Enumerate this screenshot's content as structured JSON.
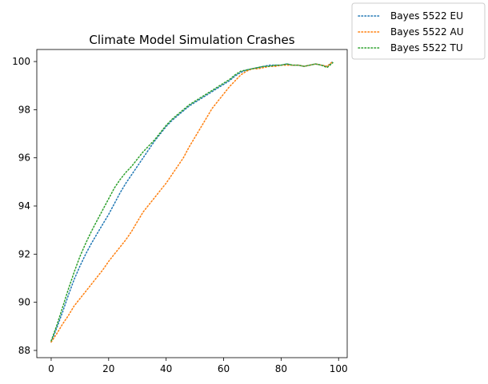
{
  "chart_data": {
    "type": "line",
    "title": "Climate Model Simulation Crashes",
    "xlabel": "",
    "ylabel": "",
    "xlim": [
      -5,
      103
    ],
    "ylim": [
      87.7,
      100.5
    ],
    "xticks": [
      0,
      20,
      40,
      60,
      80,
      100
    ],
    "yticks": [
      88,
      90,
      92,
      94,
      96,
      98,
      100
    ],
    "grid": false,
    "legend_position": "outside-top-right",
    "series": [
      {
        "name": "Bayes 5522 EU",
        "color": "#1f77b4",
        "style": "dotted",
        "x": [
          0,
          2,
          4,
          6,
          8,
          10,
          12,
          14,
          16,
          18,
          20,
          22,
          24,
          26,
          28,
          30,
          32,
          34,
          36,
          38,
          40,
          42,
          44,
          46,
          48,
          50,
          52,
          54,
          56,
          58,
          60,
          62,
          64,
          66,
          68,
          70,
          72,
          74,
          76,
          78,
          80,
          82,
          84,
          86,
          88,
          90,
          92,
          94,
          96,
          98
        ],
        "y": [
          88.35,
          88.95,
          89.6,
          90.3,
          90.95,
          91.5,
          92.0,
          92.45,
          92.85,
          93.25,
          93.65,
          94.1,
          94.55,
          94.95,
          95.3,
          95.65,
          96.0,
          96.35,
          96.7,
          97.0,
          97.3,
          97.55,
          97.75,
          97.95,
          98.15,
          98.3,
          98.45,
          98.6,
          98.75,
          98.9,
          99.05,
          99.2,
          99.4,
          99.55,
          99.65,
          99.7,
          99.75,
          99.8,
          99.85,
          99.85,
          99.85,
          99.9,
          99.85,
          99.85,
          99.8,
          99.85,
          99.9,
          99.85,
          99.8,
          100.0
        ]
      },
      {
        "name": "Bayes 5522 AU",
        "color": "#ff7f0e",
        "style": "dotted",
        "x": [
          0,
          2,
          4,
          6,
          8,
          10,
          12,
          14,
          16,
          18,
          20,
          22,
          24,
          26,
          28,
          30,
          32,
          34,
          36,
          38,
          40,
          42,
          44,
          46,
          48,
          50,
          52,
          54,
          56,
          58,
          60,
          62,
          64,
          66,
          68,
          70,
          72,
          74,
          76,
          78,
          80,
          82,
          84,
          86,
          88,
          90,
          92,
          94,
          96,
          98
        ],
        "y": [
          88.35,
          88.7,
          89.1,
          89.45,
          89.85,
          90.15,
          90.45,
          90.75,
          91.05,
          91.35,
          91.7,
          92.0,
          92.3,
          92.6,
          92.95,
          93.35,
          93.75,
          94.05,
          94.35,
          94.65,
          94.95,
          95.3,
          95.65,
          96.0,
          96.45,
          96.85,
          97.25,
          97.65,
          98.05,
          98.35,
          98.65,
          98.95,
          99.2,
          99.45,
          99.6,
          99.7,
          99.7,
          99.75,
          99.8,
          99.8,
          99.85,
          99.85,
          99.85,
          99.85,
          99.8,
          99.85,
          99.9,
          99.85,
          99.8,
          100.0
        ]
      },
      {
        "name": "Bayes 5522 TU",
        "color": "#2ca02c",
        "style": "dotted",
        "x": [
          0,
          2,
          4,
          6,
          8,
          10,
          12,
          14,
          16,
          18,
          20,
          22,
          24,
          26,
          28,
          30,
          32,
          34,
          36,
          38,
          40,
          42,
          44,
          46,
          48,
          50,
          52,
          54,
          56,
          58,
          60,
          62,
          64,
          66,
          68,
          70,
          72,
          74,
          76,
          78,
          80,
          82,
          84,
          86,
          88,
          90,
          92,
          94,
          96,
          98
        ],
        "y": [
          88.4,
          89.05,
          89.8,
          90.55,
          91.25,
          91.9,
          92.45,
          92.95,
          93.4,
          93.85,
          94.3,
          94.75,
          95.1,
          95.4,
          95.65,
          95.95,
          96.25,
          96.5,
          96.75,
          97.05,
          97.35,
          97.6,
          97.8,
          98.0,
          98.2,
          98.35,
          98.5,
          98.65,
          98.8,
          98.95,
          99.1,
          99.25,
          99.45,
          99.6,
          99.65,
          99.7,
          99.75,
          99.8,
          99.8,
          99.85,
          99.85,
          99.9,
          99.85,
          99.85,
          99.8,
          99.85,
          99.9,
          99.85,
          99.75,
          99.95
        ]
      }
    ]
  }
}
